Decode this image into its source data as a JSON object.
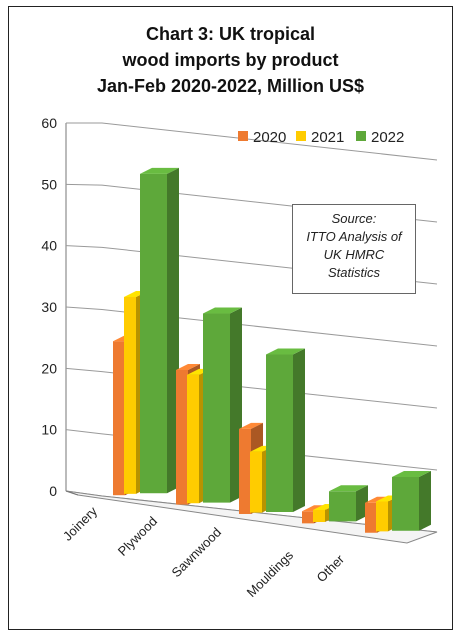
{
  "chart_data": {
    "type": "bar",
    "title_lines": [
      "Chart 3: UK tropical",
      "wood imports by product",
      "Jan-Feb 2020-2022, Million US$"
    ],
    "categories": [
      "Joinery",
      "Plywood",
      "Sawnwood",
      "Mouldings",
      "Other"
    ],
    "series": [
      {
        "name": "2020",
        "values": [
          25,
          22,
          14,
          2,
          5
        ],
        "color": "#ee7a30"
      },
      {
        "name": "2021",
        "values": [
          32,
          21,
          10,
          2,
          5
        ],
        "color": "#ffcc00"
      },
      {
        "name": "2022",
        "values": [
          52,
          31,
          26,
          5,
          9
        ],
        "color": "#5ea83a"
      }
    ],
    "ylim": [
      0,
      60
    ],
    "yticks": [
      "0",
      "10",
      "20",
      "30",
      "40",
      "50",
      "60"
    ],
    "grid": true,
    "legend_position": "top-right",
    "projection": "3d-perspective"
  },
  "source_note": [
    "Source:",
    "ITTO Analysis of",
    "UK HMRC",
    "Statistics"
  ]
}
